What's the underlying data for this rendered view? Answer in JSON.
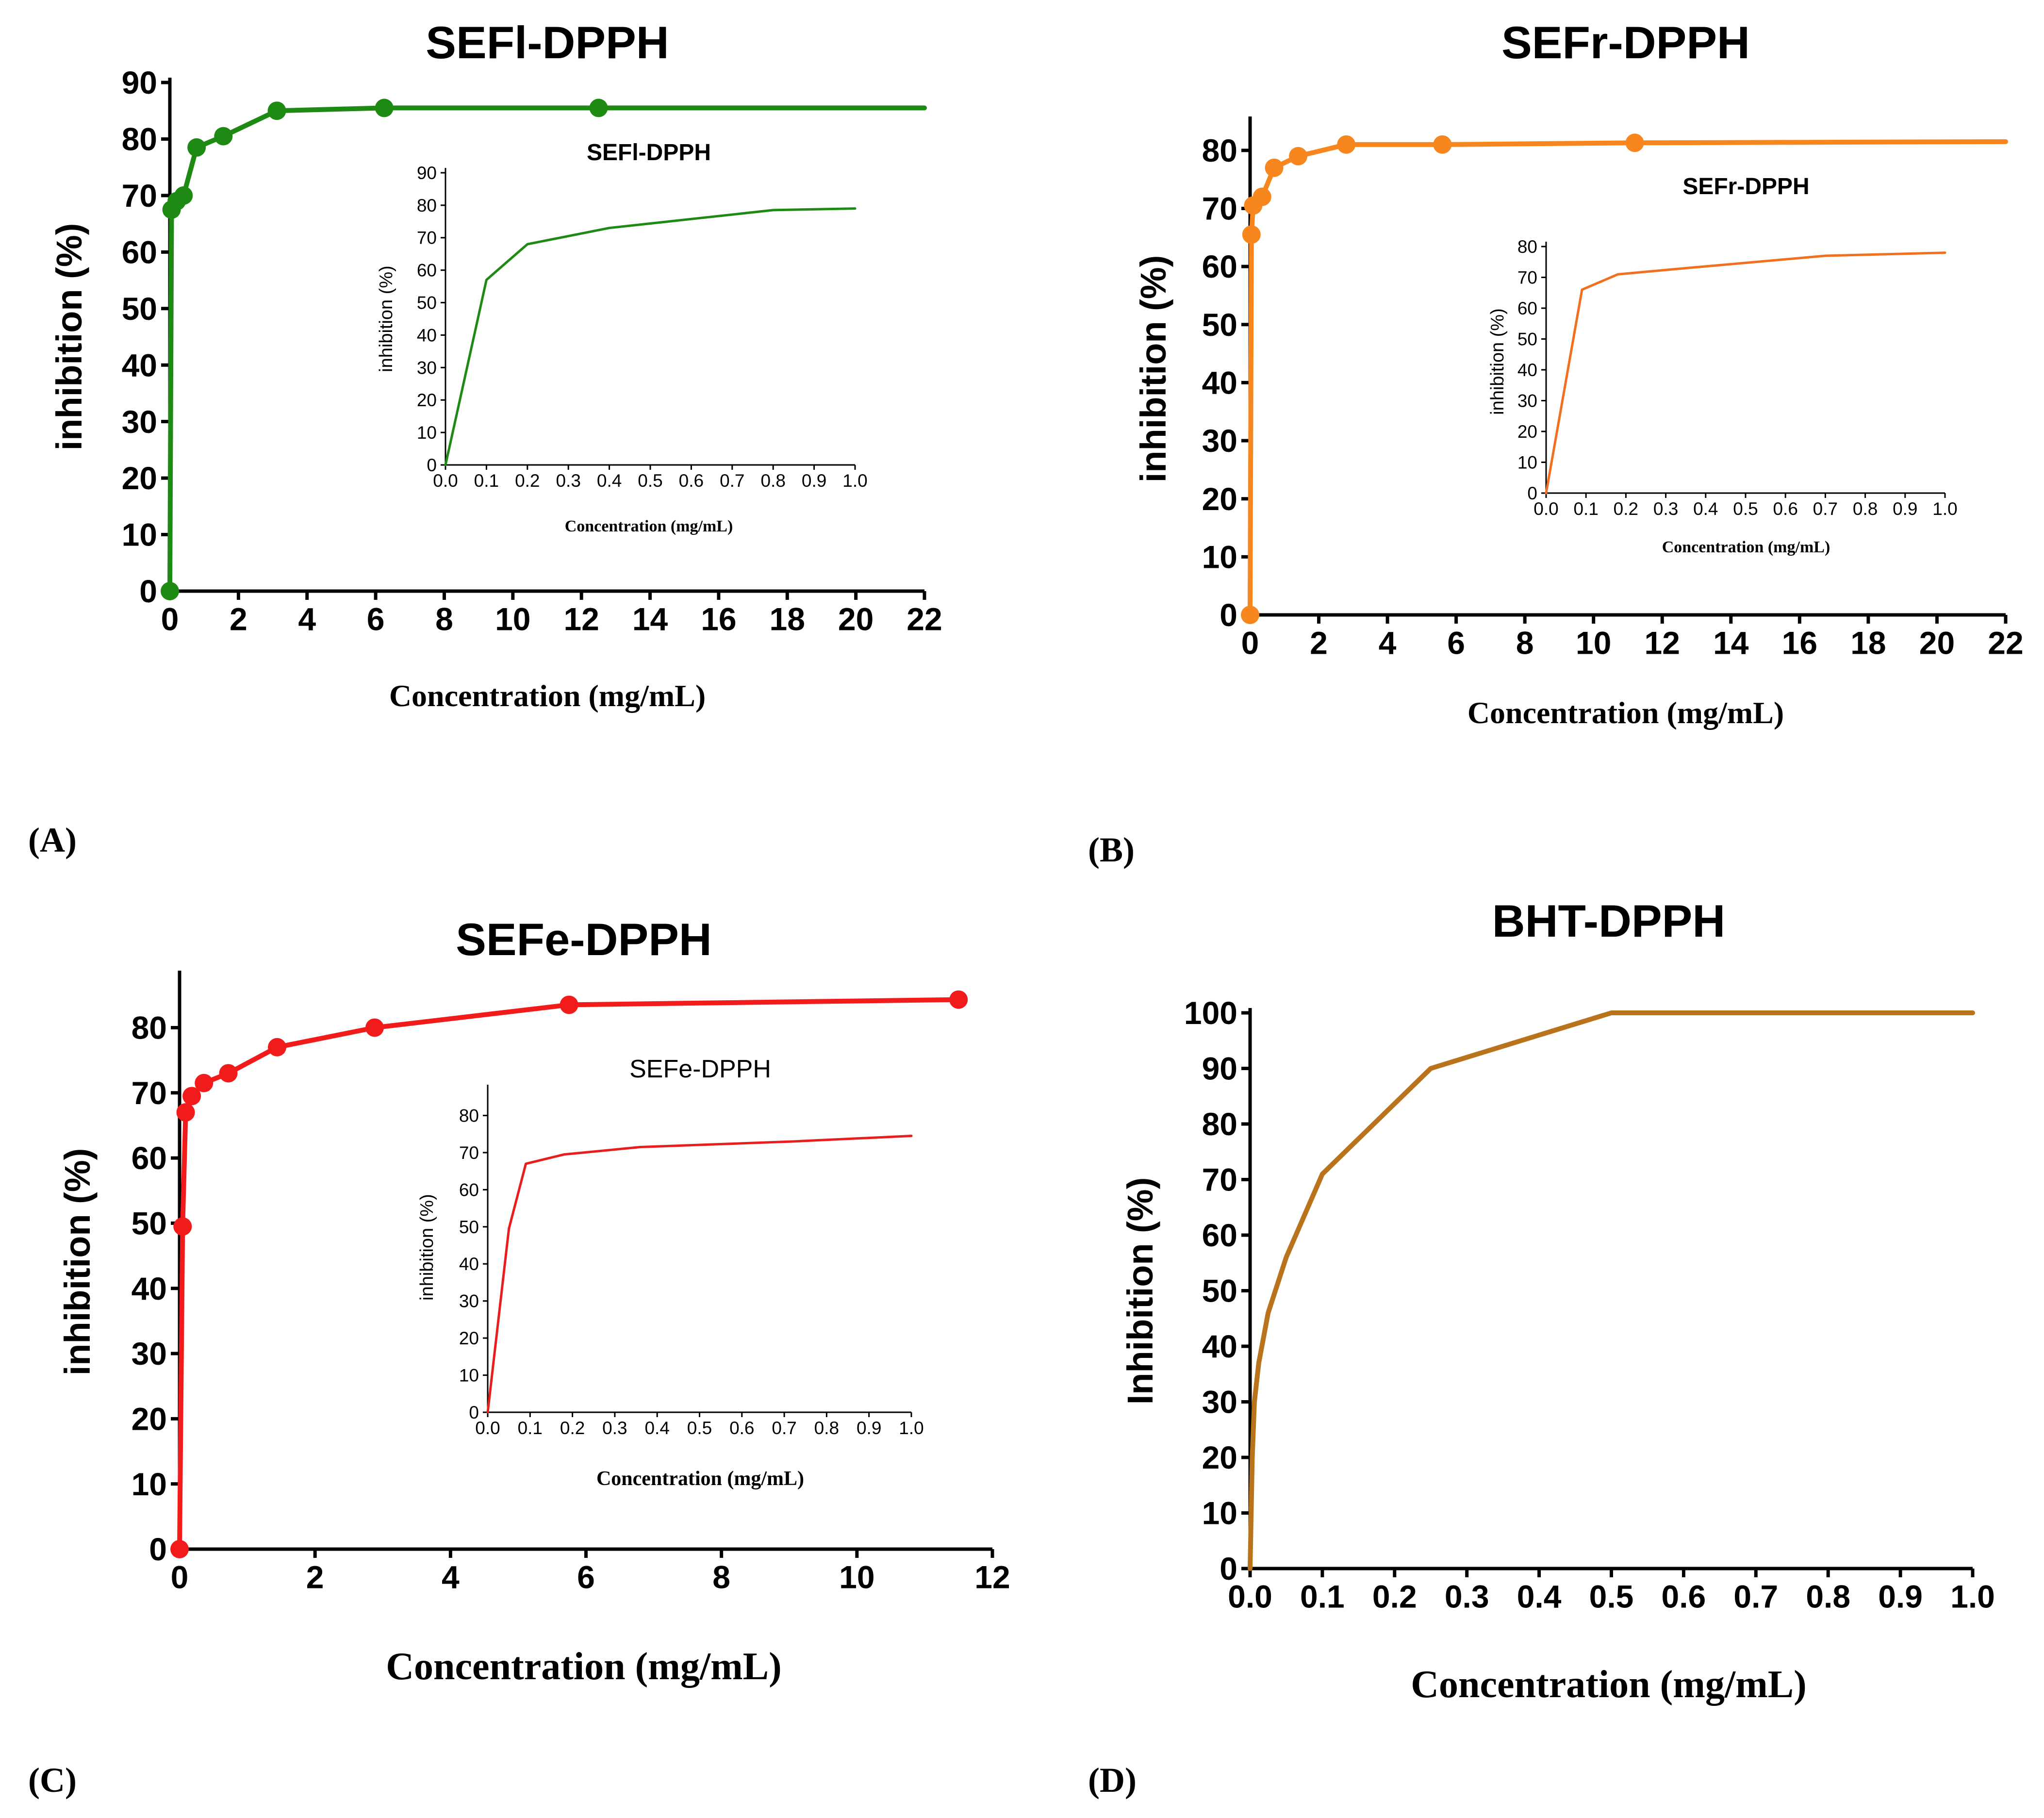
{
  "panel_labels": [
    "(A)",
    "(B)",
    "(C)",
    "(D)"
  ],
  "chart_data": [
    {
      "id": "A-main",
      "type": "line",
      "title": "SEFl-DPPH",
      "xlabel": "Concentration (mg/mL)",
      "ylabel": "inhibition (%)",
      "xlim": [
        0,
        22
      ],
      "ylim": [
        0,
        90
      ],
      "x_ticks": [
        0,
        2,
        4,
        6,
        8,
        10,
        12,
        14,
        16,
        18,
        20,
        22
      ],
      "y_ticks": [
        0,
        10,
        20,
        30,
        40,
        50,
        60,
        70,
        80,
        90
      ],
      "color": "#1e8a14",
      "markers": true,
      "series": [
        {
          "name": "SEFl-DPPH",
          "x": [
            0,
            0.05,
            0.2,
            0.4,
            0.78,
            1.56,
            3.12,
            6.25,
            12.5,
            22
          ],
          "y": [
            0,
            67.5,
            69,
            70,
            78.5,
            80.5,
            85,
            85.5,
            85.5,
            85.5
          ]
        }
      ]
    },
    {
      "id": "A-inset",
      "type": "line",
      "title": "SEFl-DPPH",
      "xlabel": "Concentration (mg/mL)",
      "ylabel": "inhibition (%)",
      "xlim": [
        0,
        1.0
      ],
      "ylim": [
        0,
        90
      ],
      "x_ticks": [
        "0.0",
        "0.1",
        "0.2",
        "0.3",
        "0.4",
        "0.5",
        "0.6",
        "0.7",
        "0.8",
        "0.9",
        "1.0"
      ],
      "y_ticks": [
        0,
        10,
        20,
        30,
        40,
        50,
        60,
        70,
        80,
        90
      ],
      "color": "#1e8a14",
      "markers": false,
      "series": [
        {
          "name": "SEFl-DPPH",
          "x": [
            0,
            0.1,
            0.2,
            0.4,
            0.8,
            1.0
          ],
          "y": [
            0,
            57,
            68,
            73,
            78.5,
            79
          ]
        }
      ]
    },
    {
      "id": "B-main",
      "type": "line",
      "title": "SEFr-DPPH",
      "xlabel": "Concentration (mg/mL)",
      "ylabel": "inhibition (%)",
      "xlim": [
        0,
        22
      ],
      "ylim": [
        0,
        85
      ],
      "x_ticks": [
        0,
        2,
        4,
        6,
        8,
        10,
        12,
        14,
        16,
        18,
        20,
        22
      ],
      "y_ticks": [
        0,
        10,
        20,
        30,
        40,
        50,
        60,
        70,
        80
      ],
      "color": "#f7861e",
      "markers": true,
      "series": [
        {
          "name": "SEFr-DPPH",
          "x": [
            0,
            0.04,
            0.09,
            0.35,
            0.7,
            1.4,
            2.8,
            5.6,
            11.2,
            22
          ],
          "y": [
            0,
            65.5,
            70.5,
            72,
            77,
            79,
            81,
            81,
            81.3,
            81.5
          ]
        }
      ]
    },
    {
      "id": "B-inset",
      "type": "line",
      "title": "SEFr-DPPH",
      "xlabel": "Concentration (mg/mL)",
      "ylabel": "inhibition (%)",
      "xlim": [
        0,
        1.0
      ],
      "ylim": [
        0,
        80
      ],
      "x_ticks": [
        "0.0",
        "0.1",
        "0.2",
        "0.3",
        "0.4",
        "0.5",
        "0.6",
        "0.7",
        "0.8",
        "0.9",
        "1.0"
      ],
      "y_ticks": [
        0,
        10,
        20,
        30,
        40,
        50,
        60,
        70,
        80
      ],
      "color": "#f07020",
      "markers": false,
      "series": [
        {
          "name": "SEFr-DPPH",
          "x": [
            0,
            0.09,
            0.18,
            0.35,
            0.7,
            1.0
          ],
          "y": [
            0,
            66,
            71,
            73,
            77,
            78
          ]
        }
      ]
    },
    {
      "id": "C-main",
      "type": "line",
      "title": "SEFe-DPPH",
      "xlabel": "Concentration (mg/mL)",
      "ylabel": "inhibition (%)",
      "xlim": [
        0,
        12
      ],
      "ylim": [
        0,
        88
      ],
      "x_ticks": [
        0,
        2,
        4,
        6,
        8,
        10,
        12
      ],
      "y_ticks": [
        0,
        10,
        20,
        30,
        40,
        50,
        60,
        70,
        80
      ],
      "color": "#f21b1b",
      "markers": true,
      "series": [
        {
          "name": "SEFe-DPPH",
          "x": [
            0,
            0.045,
            0.09,
            0.18,
            0.36,
            0.72,
            1.44,
            2.88,
            5.75,
            11.5
          ],
          "y": [
            0,
            49.5,
            67,
            69.5,
            71.5,
            73,
            77,
            80,
            83.5,
            84.3
          ]
        }
      ]
    },
    {
      "id": "C-inset",
      "type": "line",
      "title": "SEFe-DPPH",
      "xlabel": "Concentration (mg/mL)",
      "ylabel": "inhibition (%)",
      "xlim": [
        0,
        1.0
      ],
      "ylim": [
        0,
        87
      ],
      "x_ticks": [
        "0.0",
        "0.1",
        "0.2",
        "0.3",
        "0.4",
        "0.5",
        "0.6",
        "0.7",
        "0.8",
        "0.9",
        "1.0"
      ],
      "y_ticks": [
        0,
        10,
        20,
        30,
        40,
        50,
        60,
        70,
        80
      ],
      "color": "#e81e1e",
      "markers": false,
      "series": [
        {
          "name": "SEFe-DPPH",
          "x": [
            0,
            0.05,
            0.09,
            0.18,
            0.36,
            0.72,
            1.0
          ],
          "y": [
            0,
            49.5,
            67,
            69.5,
            71.5,
            73,
            74.5
          ]
        }
      ]
    },
    {
      "id": "D-main",
      "type": "line",
      "title": "BHT-DPPH",
      "xlabel": "Concentration (mg/mL)",
      "ylabel": "Inhibition (%)",
      "xlim": [
        0,
        1.0
      ],
      "ylim": [
        0,
        100
      ],
      "x_ticks": [
        "0.0",
        "0.1",
        "0.2",
        "0.3",
        "0.4",
        "0.5",
        "0.6",
        "0.7",
        "0.8",
        "0.9",
        "1.0"
      ],
      "y_ticks": [
        0,
        10,
        20,
        30,
        40,
        50,
        60,
        70,
        80,
        90,
        100
      ],
      "color": "#b8731c",
      "markers": false,
      "series": [
        {
          "name": "BHT-DPPH",
          "x": [
            0,
            0.003,
            0.006,
            0.012,
            0.025,
            0.05,
            0.1,
            0.25,
            0.5,
            1.0
          ],
          "y": [
            0,
            20,
            30,
            37,
            46,
            56,
            71,
            90,
            100,
            100
          ]
        }
      ]
    }
  ]
}
